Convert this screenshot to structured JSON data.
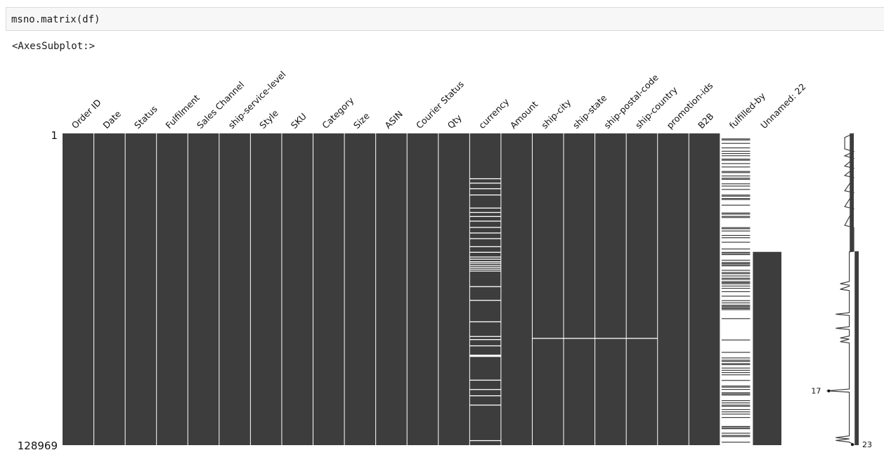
{
  "cell": {
    "code": "msno.matrix(df)",
    "output": "<AxesSubplot:>"
  },
  "chart_data": {
    "type": "heatmap",
    "title": "",
    "columns": [
      "Order ID",
      "Date",
      "Status",
      "Fulfilment",
      "Sales Channel",
      "ship-service-level",
      "Style",
      "SKU",
      "Category",
      "Size",
      "ASIN",
      "Courier Status",
      "Qty",
      "currency",
      "Amount",
      "ship-city",
      "ship-state",
      "ship-postal-code",
      "ship-country",
      "promotion-ids",
      "B2B",
      "fulfilled-by",
      "Unnamed: 22"
    ],
    "rows": {
      "first": 1,
      "last": 128969
    },
    "y_tick_labels": [
      "1",
      "128969"
    ],
    "present_fraction": [
      1,
      1,
      1,
      1,
      1,
      1,
      1,
      1,
      1,
      1,
      1,
      1,
      1,
      0.95,
      1,
      0.9997,
      0.9997,
      0.9997,
      0.9997,
      1,
      1,
      0.31,
      0.62
    ],
    "missing_rows": {
      "currency": [
        0.144,
        0.158,
        0.176,
        0.196,
        0.238,
        0.252,
        0.265,
        0.28,
        0.3,
        0.318,
        0.336,
        0.362,
        0.38,
        0.395,
        0.402,
        0.41,
        0.415,
        0.422,
        0.428,
        0.434,
        0.44,
        0.49,
        0.534,
        0.603,
        0.65,
        0.66,
        0.68,
        0.71,
        0.712,
        0.714,
        0.79,
        0.82,
        0.84,
        0.87,
        0.984
      ],
      "ship-city": [
        0.656
      ],
      "ship-state": [
        0.656
      ],
      "ship-postal-code": [
        0.656
      ],
      "ship-country": [
        0.656
      ],
      "fulfilled-by": {
        "pattern": "most rows missing, scattered present rows throughout"
      },
      "Unnamed: 22": {
        "missing_until": 0.38
      }
    },
    "sparkline": {
      "min_label": "17",
      "max_label": "23",
      "min_position": 0.826,
      "max_position": 0.998,
      "completeness_by_position": [
        {
          "p": 0.0,
          "c": 23
        },
        {
          "p": 0.013,
          "c": 21
        },
        {
          "p": 0.05,
          "c": 21
        },
        {
          "p": 0.058,
          "c": 23
        },
        {
          "p": 0.072,
          "c": 21
        },
        {
          "p": 0.08,
          "c": 23
        },
        {
          "p": 0.105,
          "c": 21
        },
        {
          "p": 0.112,
          "c": 23
        },
        {
          "p": 0.135,
          "c": 21
        },
        {
          "p": 0.142,
          "c": 23
        },
        {
          "p": 0.184,
          "c": 21
        },
        {
          "p": 0.19,
          "c": 23
        },
        {
          "p": 0.235,
          "c": 21
        },
        {
          "p": 0.242,
          "c": 23
        },
        {
          "p": 0.295,
          "c": 21
        },
        {
          "p": 0.302,
          "c": 23
        },
        {
          "p": 0.378,
          "c": 23
        },
        {
          "p": 0.38,
          "c": 22
        },
        {
          "p": 0.475,
          "c": 22
        },
        {
          "p": 0.482,
          "c": 20
        },
        {
          "p": 0.487,
          "c": 22
        },
        {
          "p": 0.49,
          "c": 22
        },
        {
          "p": 0.5,
          "c": 20
        },
        {
          "p": 0.504,
          "c": 22
        },
        {
          "p": 0.575,
          "c": 22
        },
        {
          "p": 0.58,
          "c": 19
        },
        {
          "p": 0.584,
          "c": 22
        },
        {
          "p": 0.62,
          "c": 22
        },
        {
          "p": 0.625,
          "c": 19
        },
        {
          "p": 0.629,
          "c": 22
        },
        {
          "p": 0.65,
          "c": 22
        },
        {
          "p": 0.656,
          "c": 20
        },
        {
          "p": 0.66,
          "c": 22
        },
        {
          "p": 0.668,
          "c": 20
        },
        {
          "p": 0.672,
          "c": 22
        },
        {
          "p": 0.82,
          "c": 22
        },
        {
          "p": 0.826,
          "c": 17
        },
        {
          "p": 0.83,
          "c": 22
        },
        {
          "p": 0.97,
          "c": 22
        },
        {
          "p": 0.976,
          "c": 19
        },
        {
          "p": 0.98,
          "c": 22
        },
        {
          "p": 0.985,
          "c": 19
        },
        {
          "p": 0.99,
          "c": 22
        },
        {
          "p": 0.998,
          "c": 23
        },
        {
          "p": 1.0,
          "c": 23
        }
      ]
    },
    "colors": {
      "present": "#3d3d3d",
      "missing": "#ffffff",
      "separator": "#ffffff"
    }
  }
}
